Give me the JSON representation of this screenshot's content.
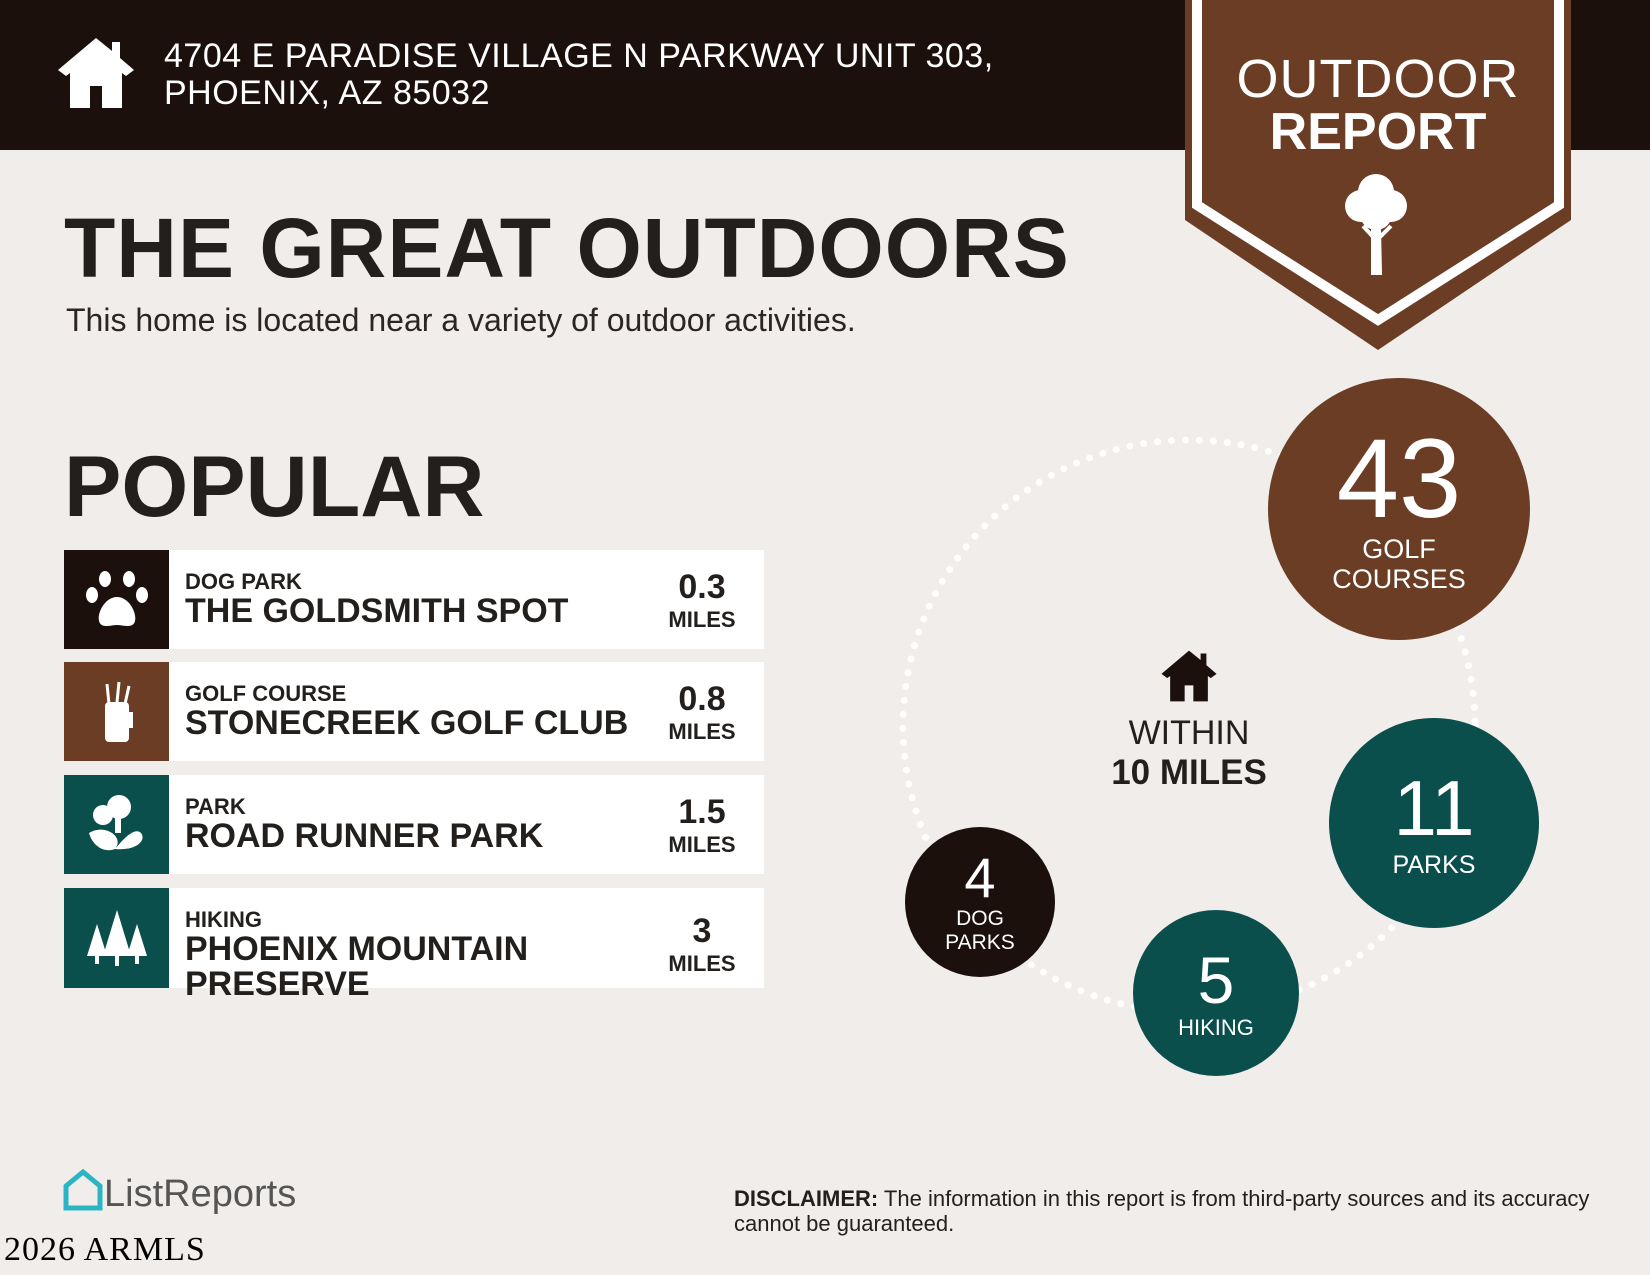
{
  "header": {
    "address_line1": "4704 E PARADISE VILLAGE N PARKWAY UNIT 303,",
    "address_line2": "PHOENIX, AZ 85032",
    "icon": "house-icon"
  },
  "banner": {
    "line1": "OUTDOOR",
    "line2": "REPORT",
    "icon": "tree-icon"
  },
  "title": "THE GREAT OUTDOORS",
  "subtitle": "This home is located near a variety of outdoor activities.",
  "popular": {
    "heading": "POPULAR",
    "items": [
      {
        "category": "DOG PARK",
        "name": "THE GOLDSMITH SPOT",
        "distance": "0.3",
        "unit": "MILES",
        "icon": "paw-icon",
        "color": "#1b100c"
      },
      {
        "category": "GOLF COURSE",
        "name": "STONECREEK GOLF CLUB",
        "distance": "0.8",
        "unit": "MILES",
        "icon": "golf-bag-icon",
        "color": "#6b3d24"
      },
      {
        "category": "PARK",
        "name": "ROAD RUNNER PARK",
        "distance": "1.5",
        "unit": "MILES",
        "icon": "park-icon",
        "color": "#0b4f4d"
      },
      {
        "category": "HIKING",
        "name": "PHOENIX MOUNTAIN PRESERVE",
        "distance": "3",
        "unit": "MILES",
        "icon": "pine-trees-icon",
        "color": "#0b4f4d"
      }
    ]
  },
  "summary": {
    "within_line1": "WITHIN",
    "within_line2": "10 MILES",
    "counts": [
      {
        "count": "43",
        "label1": "GOLF",
        "label2": "COURSES",
        "color": "#6b3d24"
      },
      {
        "count": "11",
        "label1": "PARKS",
        "color": "#0b4f4d"
      },
      {
        "count": "5",
        "label1": "HIKING",
        "color": "#0b4f4d"
      },
      {
        "count": "4",
        "label1": "DOG",
        "label2": "PARKS",
        "color": "#1b100c"
      }
    ]
  },
  "footer": {
    "logo": "ListReports",
    "watermark": "2026 ARMLS",
    "disclaimer_label": "DISCLAIMER:",
    "disclaimer_text": " The information in this report is from third-party sources and its accuracy cannot be guaranteed."
  }
}
